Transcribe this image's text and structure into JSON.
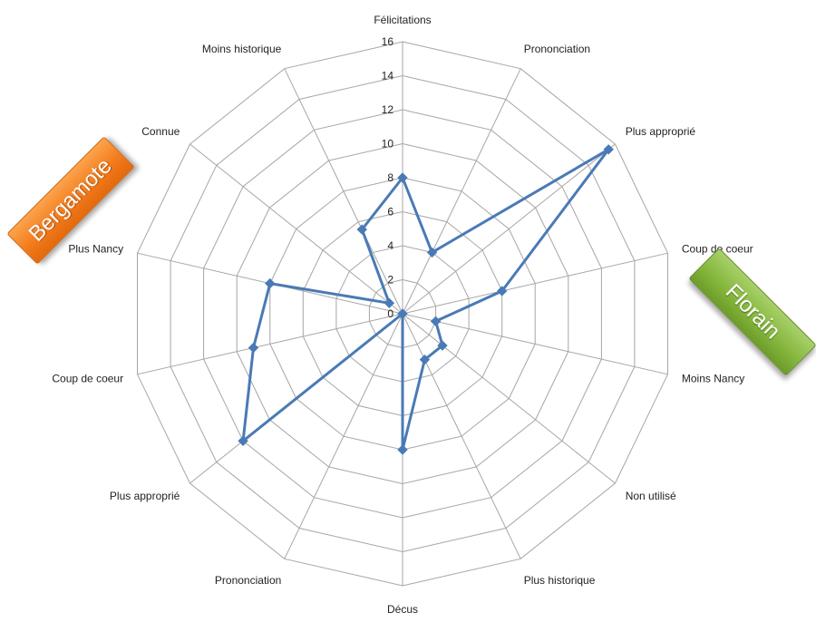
{
  "colors": {
    "series": "#4a7ab5",
    "grid": "#a6a6a6",
    "text": "#222222"
  },
  "tags": {
    "left": {
      "text": "Bergamote",
      "color": "#f47c1c"
    },
    "right": {
      "text": "Florain",
      "color": "#86b83e"
    }
  },
  "chart_data": {
    "type": "radar",
    "title": "",
    "rmin": 0,
    "rmax": 16,
    "ticks": [
      0,
      2,
      4,
      6,
      8,
      10,
      12,
      14,
      16
    ],
    "categories": [
      "Félicitations",
      "Prononciation",
      "Plus approprié",
      "Coup de coeur",
      "Moins Nancy",
      "Non utilisé",
      "Plus historique",
      "Décus",
      "Prononciation",
      "Plus approprié",
      "Coup de coeur",
      "Plus Nancy",
      "Connue",
      "Moins historique"
    ],
    "series": [
      {
        "values": [
          8,
          4,
          15.5,
          6,
          2,
          3,
          3,
          8,
          0,
          12,
          9,
          8,
          1,
          5.5
        ]
      }
    ]
  }
}
